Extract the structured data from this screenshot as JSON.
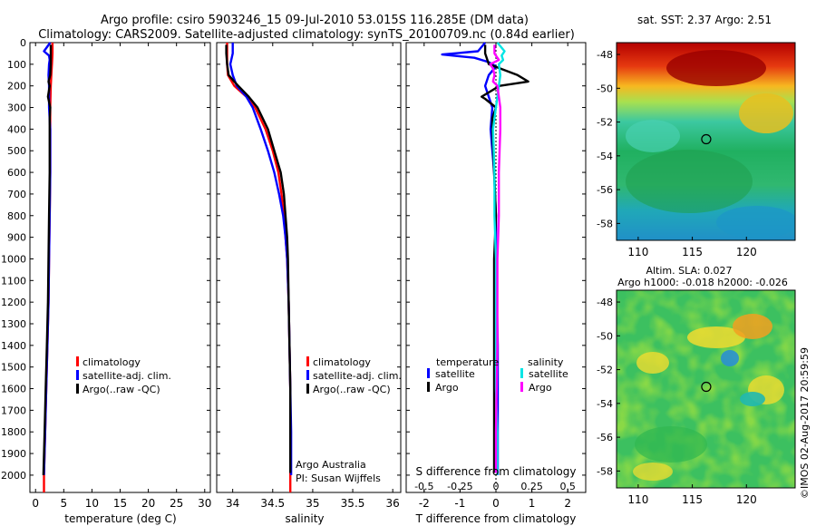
{
  "header": {
    "line1": "Argo profile: csiro 5903246_15 09-Jul-2010 53.015S 116.285E (DM data)",
    "line2": "Climatology: CARS2009. Satellite-adjusted climatology: synTS_20100709.nc (0.84d earlier)"
  },
  "colors": {
    "climatology": "#ff0000",
    "satellite": "#0000ff",
    "argo": "#000000",
    "salinity_satellite": "#00e5e5",
    "salinity_argo": "#ff00ff"
  },
  "chart_data": [
    {
      "id": "temperature",
      "type": "line",
      "xlabel": "temperature (deg C)",
      "ylabel": "",
      "xlim": [
        -1,
        31
      ],
      "ylim": [
        2080,
        0
      ],
      "xticks": [
        "0",
        "5",
        "10",
        "15",
        "20",
        "25",
        "30"
      ],
      "xtick_values": [
        0,
        5,
        10,
        15,
        20,
        25,
        30
      ],
      "yticks": [
        "0",
        "100",
        "200",
        "300",
        "400",
        "500",
        "600",
        "700",
        "800",
        "900",
        "1000",
        "1100",
        "1200",
        "1300",
        "1400",
        "1500",
        "1600",
        "1700",
        "1800",
        "1900",
        "2000"
      ],
      "legend": [
        "climatology",
        "satellite-adj. clim.",
        "Argo(..raw -QC)"
      ],
      "series": [
        {
          "name": "climatology",
          "color_key": "climatology",
          "depth": [
            0,
            50,
            100,
            150,
            200,
            300,
            400,
            600,
            800,
            1000,
            1200,
            1400,
            1600,
            1800,
            2000,
            2080
          ],
          "values": [
            3.0,
            3.0,
            2.9,
            2.8,
            2.7,
            2.6,
            2.6,
            2.6,
            2.5,
            2.4,
            2.3,
            2.1,
            1.9,
            1.7,
            1.5,
            1.5
          ]
        },
        {
          "name": "satellite-adj. clim.",
          "color_key": "satellite",
          "depth": [
            0,
            40,
            60,
            80,
            100,
            150,
            200,
            300,
            400,
            600,
            800,
            1000,
            1200,
            1400,
            1600,
            1800,
            2000
          ],
          "values": [
            2.6,
            1.5,
            2.4,
            2.5,
            2.4,
            2.3,
            2.4,
            2.4,
            2.6,
            2.6,
            2.5,
            2.4,
            2.3,
            2.1,
            1.9,
            1.7,
            1.5
          ]
        },
        {
          "name": "Argo(..raw -QC)",
          "color_key": "argo",
          "depth": [
            10,
            50,
            100,
            150,
            180,
            200,
            250,
            300,
            350,
            400,
            600,
            800,
            1000,
            1200,
            1400,
            1600,
            1800,
            2000
          ],
          "values": [
            2.7,
            2.7,
            2.7,
            2.6,
            2.3,
            2.5,
            2.2,
            2.6,
            2.5,
            2.5,
            2.5,
            2.4,
            2.3,
            2.2,
            2.0,
            1.8,
            1.6,
            1.4
          ]
        }
      ]
    },
    {
      "id": "salinity",
      "type": "line",
      "xlabel": "salinity",
      "ylabel": "",
      "xlim": [
        33.8,
        36.1
      ],
      "ylim": [
        2080,
        0
      ],
      "xticks": [
        "34",
        "34.5",
        "35",
        "35.5",
        "36"
      ],
      "xtick_values": [
        34,
        34.5,
        35,
        35.5,
        36
      ],
      "legend": [
        "climatology",
        "satellite-adj. clim.",
        "Argo(..raw -QC)"
      ],
      "annotations": [
        "Argo Australia",
        "PI: Susan Wijffels"
      ],
      "series": [
        {
          "name": "climatology",
          "color_key": "climatology",
          "depth": [
            0,
            50,
            100,
            150,
            200,
            250,
            300,
            400,
            500,
            600,
            700,
            800,
            900,
            1000,
            1200,
            1400,
            1600,
            1800,
            2000,
            2080
          ],
          "values": [
            33.93,
            33.93,
            33.93,
            33.94,
            34.02,
            34.17,
            34.28,
            34.41,
            34.5,
            34.57,
            34.61,
            34.64,
            34.66,
            34.68,
            34.7,
            34.71,
            34.72,
            34.72,
            34.72,
            34.72
          ]
        },
        {
          "name": "satellite-adj. clim.",
          "color_key": "satellite",
          "depth": [
            0,
            50,
            100,
            150,
            200,
            250,
            300,
            400,
            500,
            600,
            700,
            800,
            900,
            1000,
            1200,
            1400,
            1600,
            1800,
            2000
          ],
          "values": [
            34.0,
            34.0,
            33.97,
            34.0,
            34.05,
            34.17,
            34.25,
            34.35,
            34.44,
            34.52,
            34.58,
            34.63,
            34.66,
            34.68,
            34.7,
            34.71,
            34.72,
            34.73,
            34.73
          ]
        },
        {
          "name": "Argo(..raw -QC)",
          "color_key": "argo",
          "depth": [
            10,
            50,
            100,
            150,
            180,
            200,
            250,
            300,
            400,
            500,
            600,
            700,
            800,
            900,
            1000,
            1200,
            1400,
            1600,
            1800,
            1990
          ],
          "values": [
            33.92,
            33.92,
            33.93,
            33.95,
            34.02,
            34.07,
            34.2,
            34.31,
            34.44,
            34.52,
            34.6,
            34.64,
            34.66,
            34.68,
            34.69,
            34.7,
            34.71,
            34.72,
            34.72,
            34.72
          ]
        }
      ]
    },
    {
      "id": "difference",
      "type": "line",
      "xlabel": "T difference from climatology",
      "xlabel_top": "S difference from climatology",
      "xlim": [
        -2.5,
        2.5
      ],
      "ylim": [
        2080,
        0
      ],
      "xticks": [
        "-2",
        "-1",
        "0",
        "1",
        "2"
      ],
      "xtick_values": [
        -2,
        -1,
        0,
        1,
        2
      ],
      "xticks_top": [
        "-0.5",
        "-0.25",
        "0",
        "0.25",
        "0.5"
      ],
      "xtick_top_values": [
        -0.5,
        -0.25,
        0,
        0.25,
        0.5
      ],
      "legend_groups": [
        {
          "title": "temperature",
          "items": [
            "satellite",
            "Argo"
          ]
        },
        {
          "title": "salinity",
          "items": [
            "satellite",
            "Argo"
          ]
        }
      ],
      "series": [
        {
          "name": "temperature satellite",
          "color_key": "satellite",
          "depth": [
            0,
            40,
            55,
            70,
            90,
            110,
            150,
            200,
            300,
            400,
            600,
            800,
            1000,
            1400,
            1800,
            2000
          ],
          "values": [
            -0.3,
            -0.5,
            -1.5,
            -0.6,
            -0.2,
            0.0,
            -0.2,
            -0.3,
            -0.1,
            -0.15,
            -0.05,
            0.0,
            0.0,
            0.05,
            0.05,
            0.05
          ]
        },
        {
          "name": "temperature Argo",
          "color_key": "argo",
          "depth": [
            10,
            50,
            100,
            150,
            180,
            200,
            250,
            260,
            300,
            350,
            400,
            600,
            800,
            1000,
            1400,
            1800,
            1990
          ],
          "values": [
            -0.3,
            -0.3,
            -0.2,
            0.6,
            0.9,
            0.1,
            -0.4,
            -0.3,
            0.0,
            -0.1,
            -0.1,
            -0.05,
            0.0,
            -0.05,
            -0.05,
            -0.05,
            -0.05
          ]
        },
        {
          "name": "salinity satellite",
          "color_key": "salinity_satellite",
          "depth": [
            0,
            40,
            60,
            80,
            100,
            150,
            200,
            300,
            400,
            600,
            800,
            1000,
            1200,
            1400,
            1600,
            1800,
            2000
          ],
          "values": [
            0.01,
            0.06,
            0.04,
            0.05,
            0.02,
            0.03,
            0.02,
            0.0,
            -0.02,
            -0.01,
            -0.01,
            0.0,
            0.0,
            0.0,
            0.0,
            0.01,
            0.01
          ]
        },
        {
          "name": "salinity Argo",
          "color_key": "salinity_argo",
          "depth": [
            10,
            50,
            80,
            100,
            120,
            150,
            180,
            200,
            250,
            300,
            400,
            600,
            800,
            1000,
            1400,
            1800,
            1990
          ],
          "values": [
            -0.01,
            -0.01,
            0.02,
            -0.04,
            -0.02,
            -0.01,
            -0.02,
            0.01,
            0.02,
            0.03,
            0.03,
            0.02,
            0.02,
            0.01,
            0.01,
            0.0,
            0.0
          ]
        }
      ]
    },
    {
      "id": "sst_map",
      "type": "heatmap",
      "title": "sat. SST: 2.37  Argo: 2.51",
      "xlim": [
        108,
        124.5
      ],
      "ylim": [
        -59,
        -47.3
      ],
      "xticks": [
        "110",
        "115",
        "120"
      ],
      "xtick_values": [
        110,
        115,
        120
      ],
      "yticks": [
        "-48",
        "-50",
        "-52",
        "-54",
        "-56",
        "-58"
      ],
      "ytick_values": [
        -48,
        -50,
        -52,
        -54,
        -56,
        -58
      ],
      "marker": {
        "lon": 116.285,
        "lat": -53.015
      }
    },
    {
      "id": "sla_map",
      "type": "heatmap",
      "title": "Altim. SLA: 0.027",
      "subtitle": "Argo h1000: -0.018  h2000: -0.026",
      "xlim": [
        108,
        124.5
      ],
      "ylim": [
        -59,
        -47.3
      ],
      "xticks": [
        "110",
        "115",
        "120"
      ],
      "xtick_values": [
        110,
        115,
        120
      ],
      "yticks": [
        "-48",
        "-50",
        "-52",
        "-54",
        "-56",
        "-58"
      ],
      "ytick_values": [
        -48,
        -50,
        -52,
        -54,
        -56,
        -58
      ],
      "marker": {
        "lon": 116.285,
        "lat": -53.015
      }
    }
  ],
  "credit": "©IMOS 02-Aug-2017 20:59:59"
}
